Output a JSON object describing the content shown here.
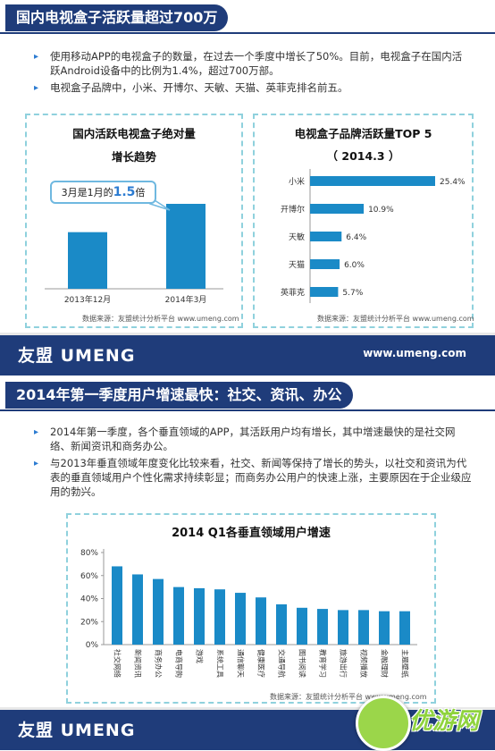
{
  "slide1": {
    "title": "国内电视盒子活跃量超过700万",
    "bullets": [
      "使用移动APP的电视盒子的数量，在过去一个季度中增长了50%。目前，电视盒子在国内活跃Android设备中的比例为1.4%，超过700万部。",
      "电视盒子品牌中，小米、开博尔、天敏、天猫、英菲克排名前五。"
    ],
    "left_chart": {
      "title_line1": "国内活跃电视盒子绝对量",
      "title_line2": "增长趋势",
      "callout_prefix": "3月是1月的",
      "callout_value": "1.5",
      "callout_suffix": "倍",
      "source": "数据来源：友盟统计分析平台 www.umeng.com"
    },
    "right_chart": {
      "title_line1": "电视盒子品牌活跃量TOP 5",
      "title_line2": "（ 2014.3 ）",
      "source": "数据来源：友盟统计分析平台 www.umeng.com"
    },
    "footer": {
      "logo": "友盟 UMENG",
      "url": "www.umeng.com"
    }
  },
  "slide2": {
    "title": "2014年第一季度用户增速最快：社交、资讯、办公",
    "bullets": [
      "2014年第一季度，各个垂直领域的APP，其活跃用户均有增长，其中增速最快的是社交网络、新闻资讯和商务办公。",
      "与2013年垂直领域年度变化比较来看，社交、新闻等保持了增长的势头，以社交和资讯为代表的垂直领域用户个性化需求持续彰显；而商务办公用户的快速上涨，主要原因在于企业级应用的勃兴。"
    ],
    "chart": {
      "title": "2014 Q1各垂直领域用户增速",
      "source": "数据来源：友盟统计分析平台 www.umeng.com"
    },
    "footer": {
      "logo": "友盟 UMENG",
      "url": "www.umeng.com"
    }
  },
  "watermark": {
    "text": "优游网"
  },
  "colors": {
    "navy": "#1f3c7a",
    "bar": "#1a8ac7",
    "dashed": "#8fd1dd",
    "bullet": "#2b7bd1"
  },
  "chart_data": [
    {
      "type": "bar",
      "categories": [
        "2013年12月",
        "2014年3月"
      ],
      "values": [
        2,
        3
      ]
    },
    {
      "type": "bar",
      "orientation": "horizontal",
      "categories": [
        "小米",
        "开博尔",
        "天敏",
        "天猫",
        "英菲克"
      ],
      "values": [
        25.4,
        10.9,
        6.4,
        6.0,
        5.7
      ],
      "labels": [
        "25.4%",
        "10.9%",
        "6.4%",
        "6.0%",
        "5.7%"
      ]
    },
    {
      "type": "bar",
      "title": "2014 Q1各垂直领域用户增速",
      "categories": [
        "社交网络",
        "新闻资讯",
        "商务办公",
        "电商导购",
        "游戏",
        "系统工具",
        "通信聊天",
        "健康医疗",
        "交通导航",
        "图书阅读",
        "教育学习",
        "旅游出行",
        "视频播放",
        "金融理财",
        "主题壁纸"
      ],
      "values": [
        68,
        61,
        57,
        50,
        49,
        48,
        45,
        41,
        35,
        32,
        31,
        30,
        30,
        29,
        29
      ],
      "ylim": [
        0,
        80
      ],
      "yticks": [
        "0%",
        "20%",
        "40%",
        "60%",
        "80%"
      ],
      "grid": false
    }
  ]
}
